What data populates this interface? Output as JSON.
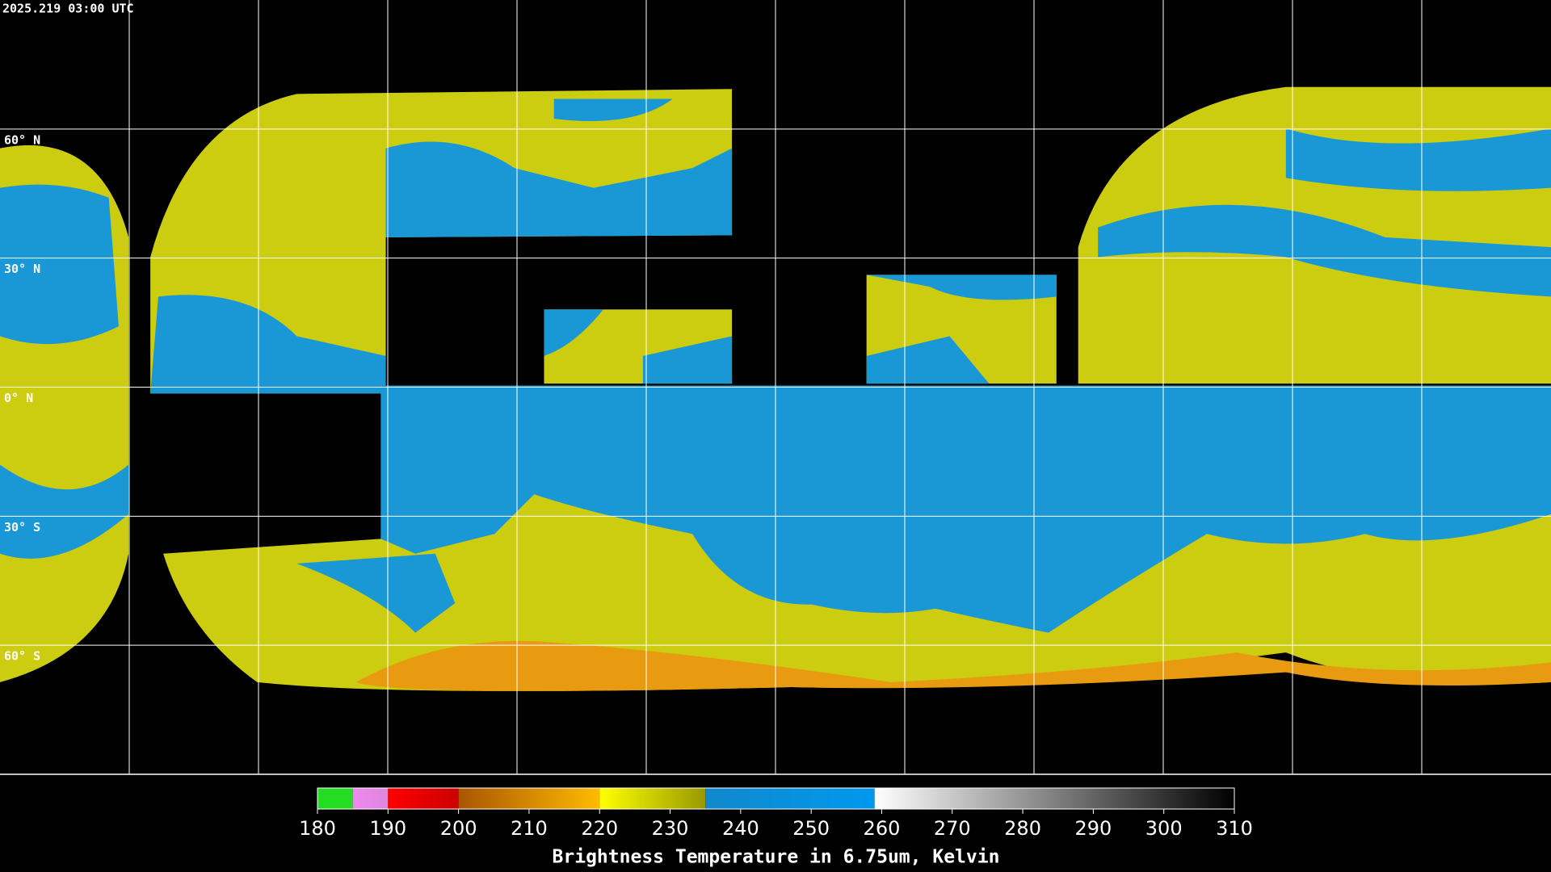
{
  "header": {
    "timestamp": "2025.219 03:00 UTC"
  },
  "map": {
    "latlim": [
      90,
      -90
    ],
    "lonlim": [
      -180,
      180
    ],
    "lat_lines": [
      {
        "value": 60,
        "label": "60° N"
      },
      {
        "value": 30,
        "label": "30° N"
      },
      {
        "value": 0,
        "label": "0° N"
      },
      {
        "value": -30,
        "label": "30° S"
      },
      {
        "value": -60,
        "label": "60° S"
      }
    ],
    "lon_lines": [
      -150,
      -120,
      -90,
      -60,
      -30,
      0,
      30,
      60,
      90,
      120,
      150
    ]
  },
  "colorbar": {
    "lim": [
      180,
      310
    ],
    "ticks": [
      180,
      190,
      200,
      210,
      220,
      230,
      240,
      250,
      260,
      270,
      280,
      290,
      300,
      310
    ],
    "title": "Brightness Temperature in 6.75um, Kelvin",
    "segments": [
      {
        "from": 180,
        "to": 185,
        "colors": [
          "#22dd22",
          "#22dd22"
        ]
      },
      {
        "from": 185,
        "to": 190,
        "colors": [
          "#ee88ee",
          "#dd88dd"
        ]
      },
      {
        "from": 190,
        "to": 200,
        "colors": [
          "#ff0000",
          "#cc0000"
        ]
      },
      {
        "from": 200,
        "to": 220,
        "colors": [
          "#aa5500",
          "#ffbb00"
        ]
      },
      {
        "from": 220,
        "to": 235,
        "colors": [
          "#ffff00",
          "#999900"
        ]
      },
      {
        "from": 235,
        "to": 259,
        "colors": [
          "#1188cc",
          "#0099ee"
        ]
      },
      {
        "from": 259,
        "to": 310,
        "colors": [
          "#ffffff",
          "#000000"
        ]
      }
    ]
  }
}
